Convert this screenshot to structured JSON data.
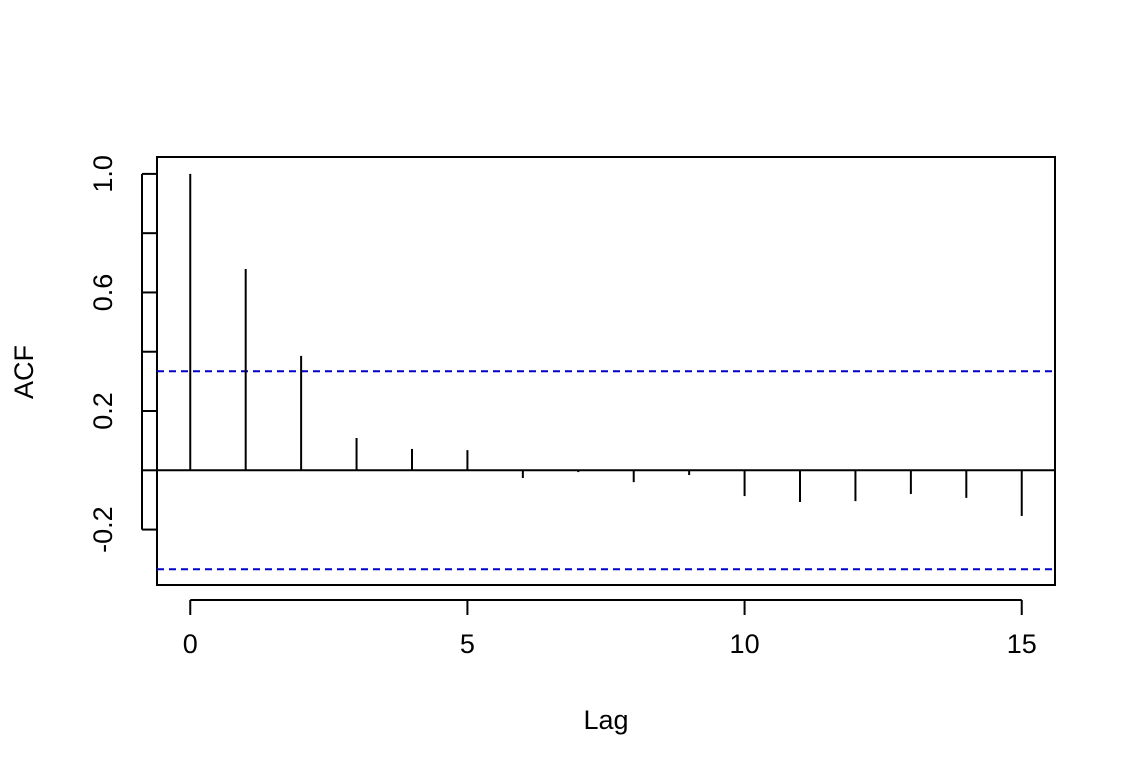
{
  "chart_data": {
    "type": "stem",
    "x_label": "Lag",
    "y_label": "ACF",
    "x": [
      0,
      1,
      2,
      3,
      4,
      5,
      6,
      7,
      8,
      9,
      10,
      11,
      12,
      13,
      14,
      15
    ],
    "values": [
      1.0,
      0.679,
      0.386,
      0.109,
      0.072,
      0.068,
      -0.026,
      -0.006,
      -0.04,
      -0.016,
      -0.087,
      -0.107,
      -0.104,
      -0.08,
      -0.093,
      -0.154
    ],
    "color": "#000000",
    "confidence_bounds": [
      -0.334,
      0.334
    ],
    "confidence_color": "#0000cc",
    "xlim": [
      -0.6,
      15.6
    ],
    "xticks": [
      0,
      5,
      10,
      15
    ],
    "ylim": [
      -0.387,
      1.057
    ],
    "yticks": [
      -0.2,
      0.2,
      0.6,
      {
        "value": 1,
        "label": "1.0"
      }
    ],
    "ytick_marks": [
      0,
      0.4,
      0.8
    ]
  }
}
